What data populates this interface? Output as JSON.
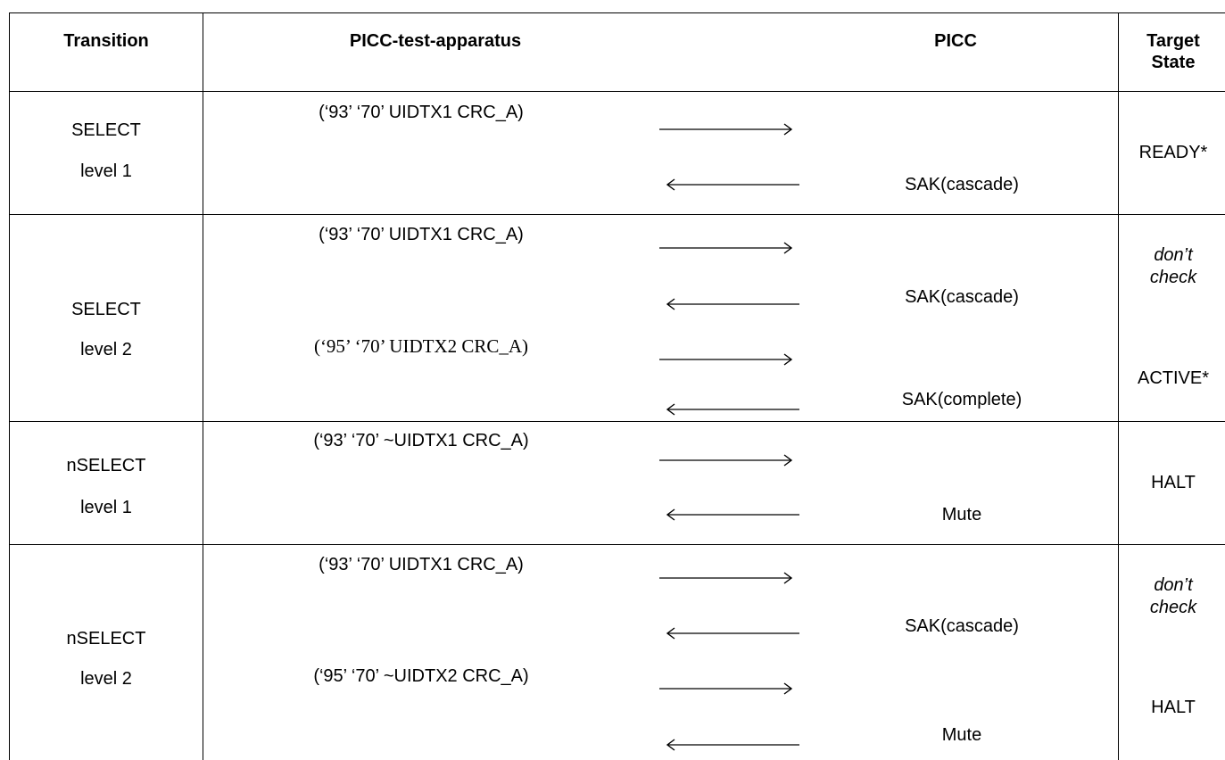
{
  "headers": {
    "transition": "Transition",
    "apparatus": "PICC-test-apparatus",
    "picc": "PICC",
    "target_line1": "Target",
    "target_line2": "State"
  },
  "rows": [
    {
      "transition": [
        "SELECT",
        "level 1"
      ],
      "messages": [
        {
          "command": "(‘93’ ‘70’ UIDTX1 CRC_A)",
          "direction": "right"
        },
        {
          "response": "SAK(cascade)",
          "direction": "left"
        }
      ],
      "states": [
        "READY*"
      ]
    },
    {
      "transition": [
        "SELECT",
        "level 2"
      ],
      "messages": [
        {
          "command": "(‘93’ ‘70’ UIDTX1 CRC_A)",
          "direction": "right"
        },
        {
          "response": "SAK(cascade)",
          "direction": "left"
        },
        {
          "command": "(‘95’ ‘70’ UIDTX2 CRC_A)",
          "direction": "right"
        },
        {
          "response": "SAK(complete)",
          "direction": "left"
        }
      ],
      "states": [
        "don’t",
        "check",
        "ACTIVE*"
      ]
    },
    {
      "transition": [
        "nSELECT",
        "level 1"
      ],
      "messages": [
        {
          "command": "(‘93’ ‘70’ ~UIDTX1 CRC_A)",
          "direction": "right"
        },
        {
          "response": "Mute",
          "direction": "left"
        }
      ],
      "states": [
        "HALT"
      ]
    },
    {
      "transition": [
        "nSELECT",
        "level 2"
      ],
      "messages": [
        {
          "command": "(‘93’ ‘70’ UIDTX1 CRC_A)",
          "direction": "right"
        },
        {
          "response": "SAK(cascade)",
          "direction": "left"
        },
        {
          "command": "(‘95’ ‘70’ ~UIDTX2 CRC_A)",
          "direction": "right"
        },
        {
          "response": "Mute",
          "direction": "left"
        }
      ],
      "states": [
        "don’t",
        "check",
        "HALT"
      ]
    }
  ]
}
